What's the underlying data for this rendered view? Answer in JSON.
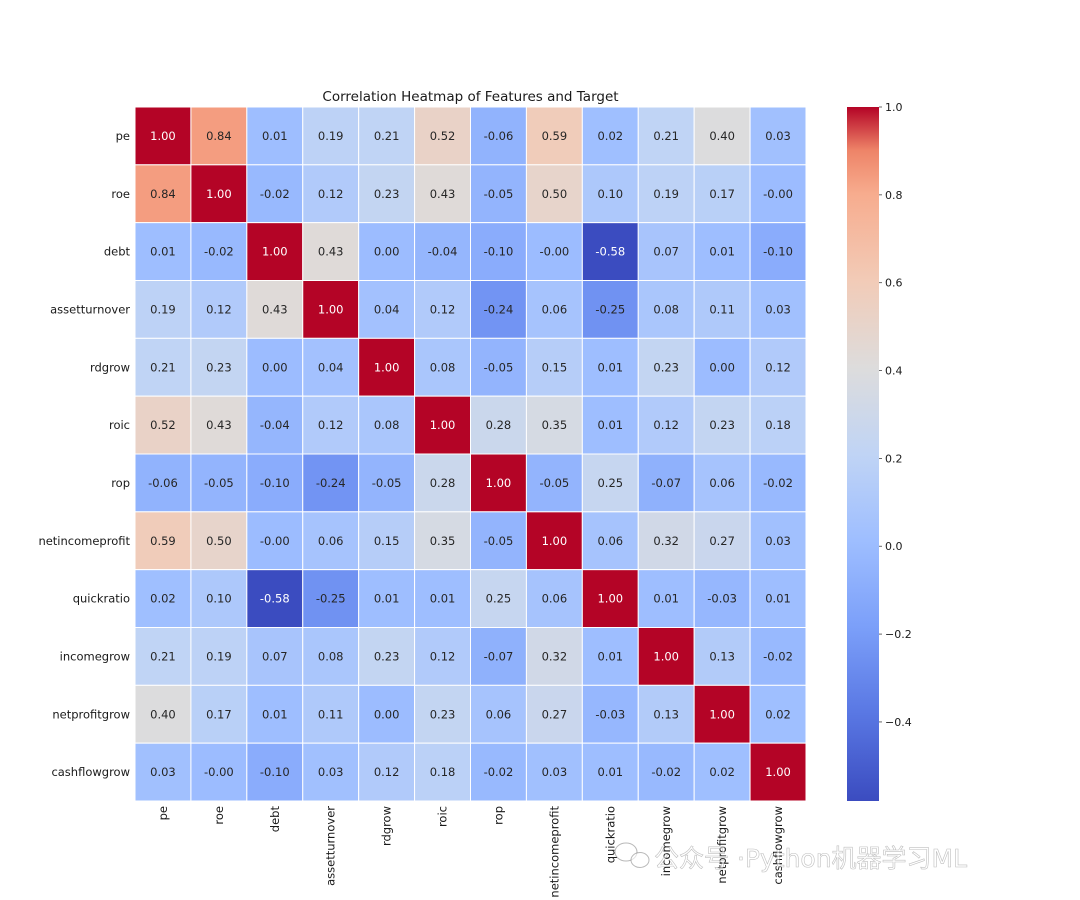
{
  "chart_data": {
    "type": "heatmap",
    "title": "Correlation Heatmap of Features and Target",
    "labels": [
      "pe",
      "roe",
      "debt",
      "assetturnover",
      "rdgrow",
      "roic",
      "rop",
      "netincomeprofit",
      "quickratio",
      "incomegrow",
      "netprofitgrow",
      "cashflowgrow"
    ],
    "matrix": [
      [
        "1.00",
        "0.84",
        "0.01",
        "0.19",
        "0.21",
        "0.52",
        "-0.06",
        "0.59",
        "0.02",
        "0.21",
        "0.40",
        "0.03"
      ],
      [
        "0.84",
        "1.00",
        "-0.02",
        "0.12",
        "0.23",
        "0.43",
        "-0.05",
        "0.50",
        "0.10",
        "0.19",
        "0.17",
        "-0.00"
      ],
      [
        "0.01",
        "-0.02",
        "1.00",
        "0.43",
        "0.00",
        "-0.04",
        "-0.10",
        "-0.00",
        "-0.58",
        "0.07",
        "0.01",
        "-0.10"
      ],
      [
        "0.19",
        "0.12",
        "0.43",
        "1.00",
        "0.04",
        "0.12",
        "-0.24",
        "0.06",
        "-0.25",
        "0.08",
        "0.11",
        "0.03"
      ],
      [
        "0.21",
        "0.23",
        "0.00",
        "0.04",
        "1.00",
        "0.08",
        "-0.05",
        "0.15",
        "0.01",
        "0.23",
        "0.00",
        "0.12"
      ],
      [
        "0.52",
        "0.43",
        "-0.04",
        "0.12",
        "0.08",
        "1.00",
        "0.28",
        "0.35",
        "0.01",
        "0.12",
        "0.23",
        "0.18"
      ],
      [
        "-0.06",
        "-0.05",
        "-0.10",
        "-0.24",
        "-0.05",
        "0.28",
        "1.00",
        "-0.05",
        "0.25",
        "-0.07",
        "0.06",
        "-0.02"
      ],
      [
        "0.59",
        "0.50",
        "-0.00",
        "0.06",
        "0.15",
        "0.35",
        "-0.05",
        "1.00",
        "0.06",
        "0.32",
        "0.27",
        "0.03"
      ],
      [
        "0.02",
        "0.10",
        "-0.58",
        "-0.25",
        "0.01",
        "0.01",
        "0.25",
        "0.06",
        "1.00",
        "0.01",
        "-0.03",
        "0.01"
      ],
      [
        "0.21",
        "0.19",
        "0.07",
        "0.08",
        "0.23",
        "0.12",
        "-0.07",
        "0.32",
        "0.01",
        "1.00",
        "0.13",
        "-0.02"
      ],
      [
        "0.40",
        "0.17",
        "0.01",
        "0.11",
        "0.00",
        "0.23",
        "0.06",
        "0.27",
        "-0.03",
        "0.13",
        "1.00",
        "0.02"
      ],
      [
        "0.03",
        "-0.00",
        "-0.10",
        "0.03",
        "0.12",
        "0.18",
        "-0.02",
        "0.03",
        "0.01",
        "-0.02",
        "0.02",
        "1.00"
      ]
    ],
    "colormap": "coolwarm",
    "vmin": -0.58,
    "vmax": 1.0,
    "colorbar_ticks": [
      "1.0",
      "0.8",
      "0.6",
      "0.4",
      "0.2",
      "0.0",
      "−0.2",
      "−0.4"
    ],
    "colorbar_tick_values": [
      1.0,
      0.8,
      0.6,
      0.4,
      0.2,
      0.0,
      -0.2,
      -0.4
    ],
    "cell_border_color": "#ffffff"
  },
  "watermark": {
    "text": "公众号 ·Python机器学习ML",
    "icon": "wechat-icon"
  }
}
